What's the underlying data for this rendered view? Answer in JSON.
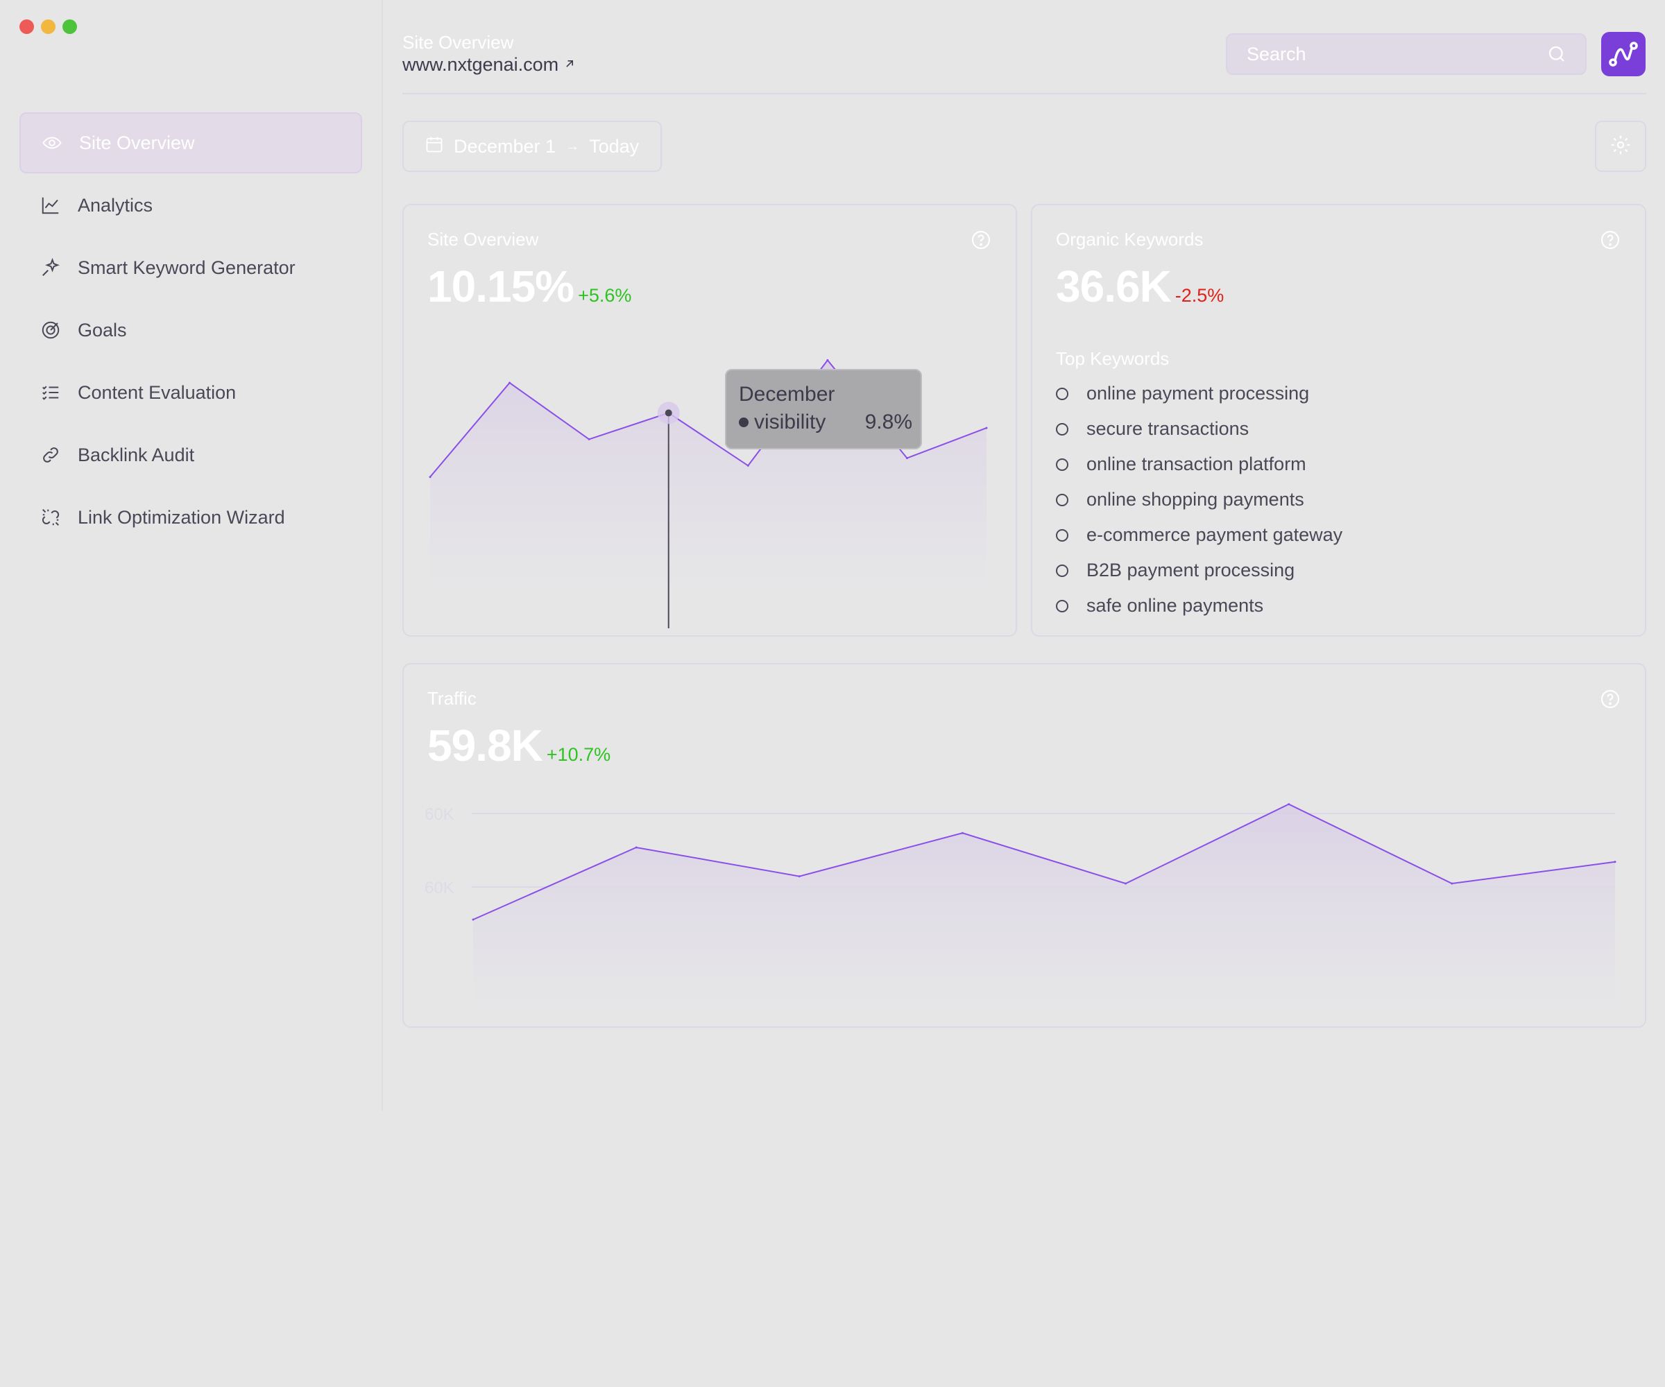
{
  "window": {
    "controls": [
      "close",
      "minimize",
      "maximize"
    ]
  },
  "sidebar": {
    "items": [
      {
        "label": "Site Overview",
        "icon": "eye-icon",
        "active": true
      },
      {
        "label": "Analytics",
        "icon": "chart-line-icon",
        "active": false
      },
      {
        "label": "Smart Keyword Generator",
        "icon": "sparkle-pin-icon",
        "active": false
      },
      {
        "label": "Goals",
        "icon": "target-icon",
        "active": false
      },
      {
        "label": "Content Evaluation",
        "icon": "checklist-icon",
        "active": false
      },
      {
        "label": "Backlink Audit",
        "icon": "link-icon",
        "active": false
      },
      {
        "label": "Link Optimization Wizard",
        "icon": "broken-link-icon",
        "active": false
      }
    ]
  },
  "header": {
    "title": "Site Overview",
    "url": "www.nxtgenai.com",
    "url_icon": "external-arrow-icon",
    "search": {
      "placeholder": "Search",
      "value": ""
    },
    "logo_icon": "route-logo-icon"
  },
  "date_range": {
    "start": "December 1",
    "end": "Today",
    "arrow": "→"
  },
  "colors": {
    "accent": "#7b3fd9",
    "line": "#8a4fe8",
    "positive": "#2ec321",
    "negative": "#e0211a"
  },
  "site_overview_card": {
    "title": "Site Overview",
    "value": "10.15%",
    "delta": "+5.6%",
    "tooltip": {
      "title": "December",
      "series": "visibility",
      "value": "9.8%"
    }
  },
  "organic_keywords_card": {
    "title": "Organic Keywords",
    "value": "36.6K",
    "delta": "-2.5%",
    "top_keywords_label": "Top Keywords",
    "keywords": [
      "online payment processing",
      "secure transactions",
      "online transaction platform",
      "online shopping payments",
      "e-commerce payment gateway",
      "B2B payment processing",
      "safe online payments"
    ]
  },
  "traffic_card": {
    "title": "Traffic",
    "value": "59.8K",
    "delta": "+10.7%"
  },
  "chart_data": [
    {
      "type": "area",
      "values": [
        8.1,
        10.6,
        9.1,
        9.8,
        8.4,
        11.2,
        8.6,
        9.4
      ],
      "ylim": [
        5,
        12
      ],
      "hover_index": 3
    },
    {
      "type": "area",
      "y_tick_labels": [
        "60K",
        "60K"
      ],
      "values": [
        43,
        53,
        49,
        55,
        48,
        59,
        48,
        51
      ],
      "ylim": [
        38,
        63
      ]
    }
  ]
}
